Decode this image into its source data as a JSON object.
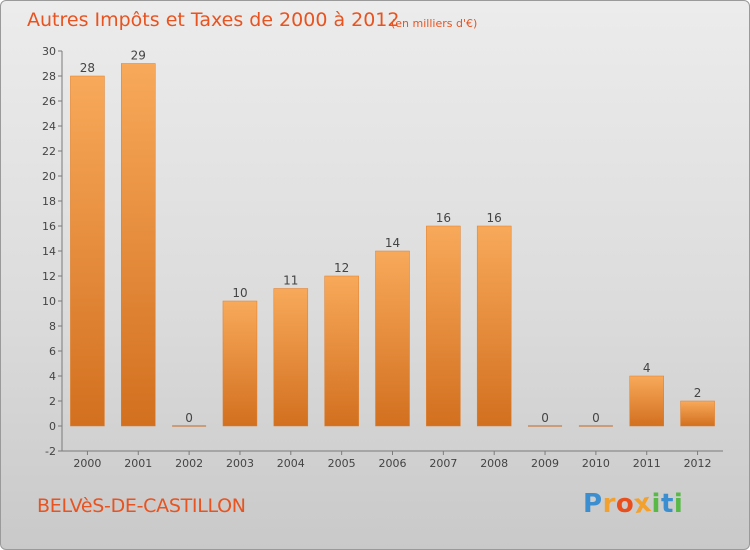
{
  "header": {
    "title": "Autres Impôts et Taxes de 2000 à 2012",
    "subtitle": "(en milliers d'€)"
  },
  "footer": {
    "commune": "BELVèS-DE-CASTILLON",
    "logo": {
      "letters": [
        "P",
        "r",
        "o",
        "x",
        "i",
        "t",
        "i"
      ],
      "colors": [
        "#3b8fd0",
        "#f2a12e",
        "#e94f1d",
        "#f2a12e",
        "#58b947",
        "#3b8fd0",
        "#58b947"
      ]
    }
  },
  "chart_data": {
    "type": "bar",
    "categories": [
      "2000",
      "2001",
      "2002",
      "2003",
      "2004",
      "2005",
      "2006",
      "2007",
      "2008",
      "2009",
      "2010",
      "2011",
      "2012"
    ],
    "values": [
      28,
      29,
      0,
      10,
      11,
      12,
      14,
      16,
      16,
      0,
      0,
      4,
      2
    ],
    "value_labels": [
      "28",
      "29",
      "0",
      "10",
      "11",
      "12",
      "14",
      "16",
      "16",
      "0",
      "0",
      "4",
      "2"
    ],
    "title": "Autres Impôts et Taxes de 2000 à 2012",
    "subtitle": "(en milliers d'€)",
    "xlabel": "",
    "ylabel": "",
    "ylim": [
      -2,
      30
    ],
    "yticks": [
      -2,
      0,
      2,
      4,
      6,
      8,
      10,
      12,
      14,
      16,
      18,
      20,
      22,
      24,
      26,
      28,
      30
    ],
    "grid": false,
    "legend": "none",
    "colors": {
      "bar_top": "#f8a95a",
      "bar_bottom": "#d2701f",
      "bar_edge": "#e07d28",
      "zero_line": "#c88a5a",
      "text": "#444444"
    }
  }
}
